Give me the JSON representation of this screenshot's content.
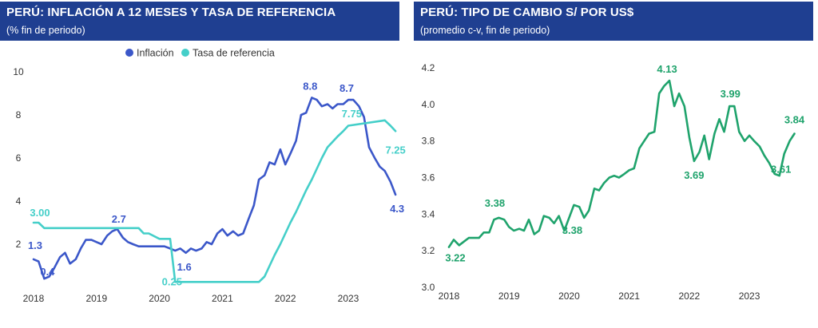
{
  "colors": {
    "header_bg": "#1f3f91",
    "inflation": "#3b57c9",
    "reference_rate": "#45cfc9",
    "exchange_rate": "#1fa36c"
  },
  "left_chart": {
    "title": "PERÚ: INFLACIÓN A 12 MESES Y TASA DE REFERENCIA",
    "subtitle": "(% fin de periodo)"
  },
  "right_chart": {
    "title": "PERÚ: TIPO DE CAMBIO S/ POR US$",
    "subtitle": "(promedio c-v, fin de periodo)"
  },
  "chart_data": [
    {
      "type": "line",
      "title": "PERÚ: INFLACIÓN A 12 MESES Y TASA DE REFERENCIA",
      "subtitle": "(% fin de periodo)",
      "x_ticks": [
        "2018",
        "2019",
        "2020",
        "2021",
        "2022",
        "2023"
      ],
      "y_ticks": [
        "2",
        "4",
        "6",
        "8",
        "10"
      ],
      "ylim": [
        0,
        10
      ],
      "xlim": [
        2018,
        2023.85
      ],
      "legend_position": "top-center",
      "grid": false,
      "series": [
        {
          "name": "Inflación",
          "color": "#3b57c9",
          "x": [
            2018.0,
            2018.08,
            2018.17,
            2018.25,
            2018.33,
            2018.42,
            2018.5,
            2018.58,
            2018.67,
            2018.75,
            2018.83,
            2018.92,
            2019.0,
            2019.08,
            2019.17,
            2019.25,
            2019.33,
            2019.42,
            2019.5,
            2019.58,
            2019.67,
            2019.75,
            2019.83,
            2019.92,
            2020.0,
            2020.08,
            2020.17,
            2020.25,
            2020.33,
            2020.42,
            2020.5,
            2020.58,
            2020.67,
            2020.75,
            2020.83,
            2020.92,
            2021.0,
            2021.08,
            2021.17,
            2021.25,
            2021.33,
            2021.42,
            2021.5,
            2021.58,
            2021.67,
            2021.75,
            2021.83,
            2021.92,
            2022.0,
            2022.08,
            2022.17,
            2022.25,
            2022.33,
            2022.42,
            2022.5,
            2022.58,
            2022.67,
            2022.75,
            2022.83,
            2022.92,
            2023.0,
            2023.08,
            2023.17,
            2023.25,
            2023.33,
            2023.42,
            2023.5,
            2023.58,
            2023.67,
            2023.75
          ],
          "values": [
            1.3,
            1.2,
            0.4,
            0.5,
            0.9,
            1.4,
            1.6,
            1.1,
            1.3,
            1.8,
            2.2,
            2.2,
            2.1,
            2.0,
            2.4,
            2.6,
            2.7,
            2.3,
            2.1,
            2.0,
            1.9,
            1.9,
            1.9,
            1.9,
            1.9,
            1.9,
            1.8,
            1.7,
            1.8,
            1.6,
            1.8,
            1.7,
            1.8,
            2.1,
            2.0,
            2.5,
            2.7,
            2.4,
            2.6,
            2.4,
            2.5,
            3.2,
            3.8,
            5.0,
            5.2,
            5.8,
            5.7,
            6.4,
            5.7,
            6.2,
            6.8,
            8.0,
            8.1,
            8.8,
            8.7,
            8.4,
            8.5,
            8.3,
            8.5,
            8.5,
            8.7,
            8.7,
            8.4,
            7.9,
            6.5,
            6.0,
            5.6,
            5.4,
            4.9,
            4.3
          ]
        },
        {
          "name": "Tasa de referencia",
          "color": "#45cfc9",
          "x": [
            2018.0,
            2018.08,
            2018.17,
            2018.25,
            2019.67,
            2019.75,
            2019.83,
            2020.0,
            2020.17,
            2020.25,
            2021.58,
            2021.67,
            2021.75,
            2021.83,
            2021.92,
            2022.0,
            2022.08,
            2022.17,
            2022.25,
            2022.33,
            2022.42,
            2022.5,
            2022.58,
            2022.67,
            2022.75,
            2022.83,
            2022.92,
            2023.0,
            2023.58,
            2023.67,
            2023.75
          ],
          "values": [
            3.0,
            3.0,
            2.75,
            2.75,
            2.75,
            2.5,
            2.5,
            2.25,
            2.25,
            0.25,
            0.25,
            0.5,
            1.0,
            1.5,
            2.0,
            2.5,
            3.0,
            3.5,
            4.0,
            4.5,
            5.0,
            5.5,
            6.0,
            6.5,
            6.75,
            7.0,
            7.25,
            7.5,
            7.75,
            7.5,
            7.25
          ]
        }
      ],
      "annotations": [
        {
          "text": "1.3",
          "series": "Inflación"
        },
        {
          "text": "0.4",
          "series": "Inflación"
        },
        {
          "text": "2.7",
          "series": "Inflación"
        },
        {
          "text": "1.6",
          "series": "Inflación"
        },
        {
          "text": "8.8",
          "series": "Inflación"
        },
        {
          "text": "8.7",
          "series": "Inflación"
        },
        {
          "text": "4.3",
          "series": "Inflación"
        },
        {
          "text": "3.00",
          "series": "Tasa de referencia"
        },
        {
          "text": "0.25",
          "series": "Tasa de referencia"
        },
        {
          "text": "7.75",
          "series": "Tasa de referencia"
        },
        {
          "text": "7.25",
          "series": "Tasa de referencia"
        }
      ]
    },
    {
      "type": "line",
      "title": "PERÚ: TIPO DE CAMBIO S/ POR US$",
      "subtitle": "(promedio c-v, fin de periodo)",
      "x_ticks": [
        "2018",
        "2019",
        "2020",
        "2021",
        "2022",
        "2023"
      ],
      "y_ticks": [
        "3.0",
        "3.2",
        "3.4",
        "3.6",
        "3.8",
        "4.0",
        "4.2"
      ],
      "ylim": [
        3.0,
        4.2
      ],
      "xlim": [
        2018,
        2023.85
      ],
      "legend_position": "none",
      "grid": false,
      "series": [
        {
          "color": "#1fa36c",
          "x": [
            2018.0,
            2018.08,
            2018.17,
            2018.25,
            2018.33,
            2018.42,
            2018.5,
            2018.58,
            2018.67,
            2018.75,
            2018.83,
            2018.92,
            2019.0,
            2019.08,
            2019.17,
            2019.25,
            2019.33,
            2019.42,
            2019.5,
            2019.58,
            2019.67,
            2019.75,
            2019.83,
            2019.92,
            2020.0,
            2020.08,
            2020.17,
            2020.25,
            2020.33,
            2020.42,
            2020.5,
            2020.58,
            2020.67,
            2020.75,
            2020.83,
            2020.92,
            2021.0,
            2021.08,
            2021.17,
            2021.25,
            2021.33,
            2021.42,
            2021.5,
            2021.58,
            2021.67,
            2021.75,
            2021.83,
            2021.92,
            2022.0,
            2022.08,
            2022.17,
            2022.25,
            2022.33,
            2022.42,
            2022.5,
            2022.58,
            2022.67,
            2022.75,
            2022.83,
            2022.92,
            2023.0,
            2023.08,
            2023.17,
            2023.25,
            2023.33,
            2023.42,
            2023.5,
            2023.58,
            2023.67,
            2023.75
          ],
          "values": [
            3.22,
            3.26,
            3.23,
            3.25,
            3.27,
            3.27,
            3.27,
            3.3,
            3.3,
            3.37,
            3.38,
            3.37,
            3.33,
            3.31,
            3.32,
            3.31,
            3.37,
            3.29,
            3.31,
            3.39,
            3.38,
            3.35,
            3.39,
            3.31,
            3.38,
            3.45,
            3.44,
            3.38,
            3.42,
            3.54,
            3.53,
            3.57,
            3.6,
            3.61,
            3.6,
            3.62,
            3.64,
            3.65,
            3.76,
            3.8,
            3.84,
            3.85,
            4.06,
            4.1,
            4.13,
            3.99,
            4.06,
            3.99,
            3.82,
            3.69,
            3.74,
            3.83,
            3.7,
            3.84,
            3.92,
            3.85,
            3.99,
            3.99,
            3.85,
            3.8,
            3.83,
            3.8,
            3.77,
            3.72,
            3.68,
            3.62,
            3.61,
            3.73,
            3.8,
            3.84
          ]
        }
      ],
      "annotations": [
        {
          "text": "3.22"
        },
        {
          "text": "3.38"
        },
        {
          "text": "3.38"
        },
        {
          "text": "4.13"
        },
        {
          "text": "3.69"
        },
        {
          "text": "3.99"
        },
        {
          "text": "3.61"
        },
        {
          "text": "3.84"
        }
      ]
    }
  ]
}
